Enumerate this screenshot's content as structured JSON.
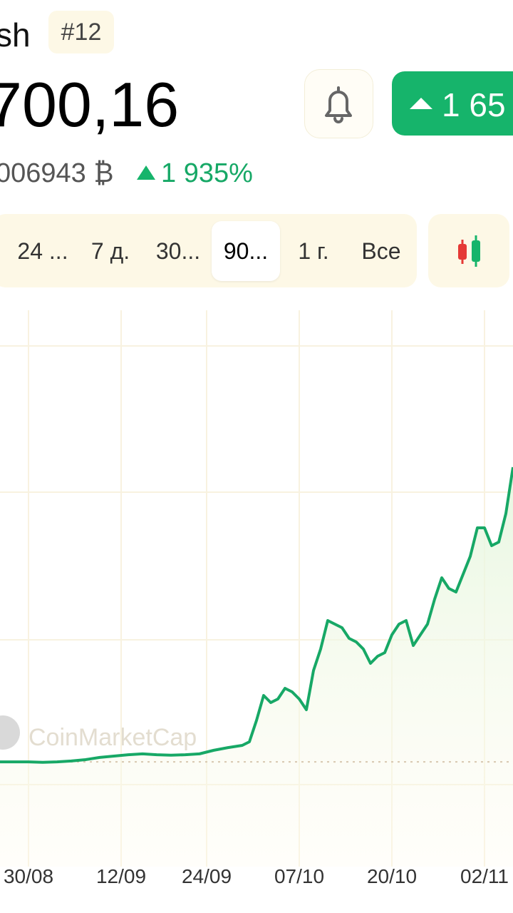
{
  "header": {
    "name": "sh",
    "rank": "#12"
  },
  "price": {
    "value": "700,16",
    "btc": "006943 ₿",
    "change": "1 935%"
  },
  "change_button": "1 65",
  "tabs": [
    "24 ...",
    "7 д.",
    "30...",
    "90...",
    "1 г.",
    "Все"
  ],
  "selected_tab": 3,
  "watermark": "CoinMarketCap",
  "chart_data": {
    "type": "line",
    "color": "#17a866",
    "x": [
      -4,
      -2,
      0,
      2,
      4,
      6,
      8,
      10,
      12,
      14,
      16,
      18,
      20,
      22,
      24,
      26,
      28,
      30,
      31,
      32,
      33,
      34,
      35,
      36,
      37,
      38,
      39,
      40,
      41,
      42,
      43,
      44,
      45,
      46,
      47,
      48,
      49,
      50,
      51,
      52,
      53,
      54,
      55,
      56,
      57,
      58,
      59,
      60,
      61,
      62,
      63,
      64,
      65,
      66,
      67,
      68
    ],
    "values": [
      40,
      40,
      40,
      39,
      40,
      42,
      45,
      50,
      53,
      56,
      58,
      56,
      55,
      56,
      58,
      66,
      72,
      77,
      85,
      133,
      189,
      173,
      181,
      205,
      197,
      181,
      157,
      245,
      293,
      357,
      349,
      341,
      317,
      309,
      293,
      261,
      277,
      285,
      325,
      349,
      357,
      301,
      325,
      349,
      405,
      453,
      429,
      421,
      461,
      501,
      565,
      565,
      525,
      533,
      597,
      701
    ],
    "xlim": [
      -4,
      68
    ],
    "ylim": [
      -195,
      1053
    ],
    "xticks": [
      {
        "value": 0,
        "label": "30/08"
      },
      {
        "value": 13,
        "label": "12/09"
      },
      {
        "value": 25,
        "label": "24/09"
      },
      {
        "value": 38,
        "label": "07/10"
      },
      {
        "value": 51,
        "label": "20/10"
      },
      {
        "value": 64,
        "label": "02/11"
      }
    ]
  }
}
